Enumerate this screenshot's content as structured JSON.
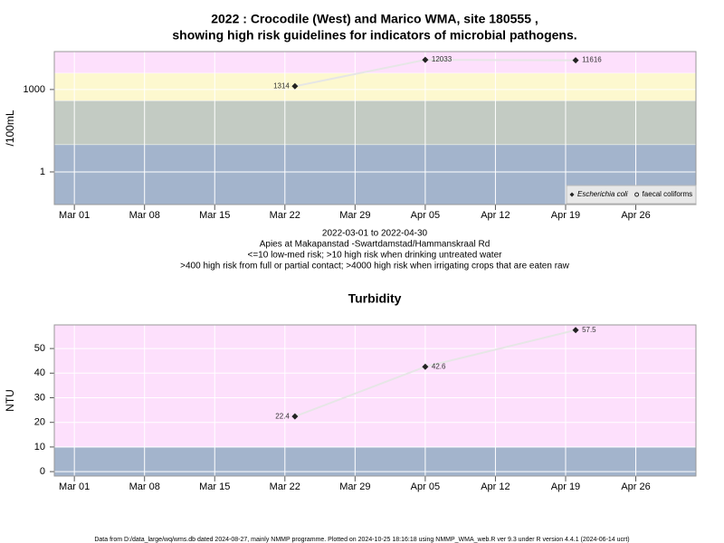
{
  "chart_data": [
    {
      "type": "line",
      "title": [
        "2022 : Crocodile (West) and Marico WMA, site 180555 ,",
        "showing high risk guidelines for indicators of microbial pathogens."
      ],
      "ylabel": "/100mL",
      "notes": [
        "2022-03-01 to 2022-04-30",
        "Apies at Makapanstad -Swartdamstad/Hammanskraal Rd",
        "<=10 low-med risk; >10 high risk when drinking untreated water",
        ">400 high risk from full or partial contact; >4000 high risk when irrigating crops that are eaten raw"
      ],
      "x": [
        "2022-03-23",
        "2022-04-05",
        "2022-04-20"
      ],
      "series": [
        {
          "name": "Escherichia coli",
          "color": "#222222",
          "marker": "diamond",
          "values": [
            1314,
            12033,
            11616
          ]
        },
        {
          "name": "faecal coliforms",
          "color": "#222222",
          "marker": "circle",
          "values": [
            null,
            null,
            null
          ]
        }
      ],
      "log_y": true,
      "ylim": [
        0.065,
        24000
      ],
      "yticks": [
        1,
        1000
      ],
      "xlim": [
        "2022-02-27",
        "2022-05-02"
      ],
      "xticks": [
        {
          "value": "2022-03-01",
          "label": "Mar 01"
        },
        {
          "value": "2022-03-08",
          "label": "Mar 08"
        },
        {
          "value": "2022-03-15",
          "label": "Mar 15"
        },
        {
          "value": "2022-03-22",
          "label": "Mar 22"
        },
        {
          "value": "2022-03-29",
          "label": "Mar 29"
        },
        {
          "value": "2022-04-05",
          "label": "Apr 05"
        },
        {
          "value": "2022-04-12",
          "label": "Apr 12"
        },
        {
          "value": "2022-04-19",
          "label": "Apr 19"
        },
        {
          "value": "2022-04-26",
          "label": "Apr 26"
        }
      ],
      "thresholds": [
        10,
        400,
        4000
      ],
      "band_colors": [
        "#a3b4cc",
        "#c3cbc3",
        "#fdf8cf",
        "#fde0fc"
      ],
      "line_color": "#e6e6e6",
      "grid": true,
      "legend": "bottom-right"
    },
    {
      "type": "line",
      "title": "Turbidity",
      "ylabel": "NTU",
      "x": [
        "2022-03-23",
        "2022-04-05",
        "2022-04-20"
      ],
      "values": [
        22.4,
        42.6,
        57.5
      ],
      "color": "#222222",
      "marker": "diamond",
      "log_y": false,
      "ylim": [
        -1.8,
        59.6
      ],
      "yticks": [
        0,
        10,
        20,
        30,
        40,
        50
      ],
      "xlim": [
        "2022-02-27",
        "2022-05-02"
      ],
      "xticks": [
        {
          "value": "2022-03-01",
          "label": "Mar 01"
        },
        {
          "value": "2022-03-08",
          "label": "Mar 08"
        },
        {
          "value": "2022-03-15",
          "label": "Mar 15"
        },
        {
          "value": "2022-03-22",
          "label": "Mar 22"
        },
        {
          "value": "2022-03-29",
          "label": "Mar 29"
        },
        {
          "value": "2022-04-05",
          "label": "Apr 05"
        },
        {
          "value": "2022-04-12",
          "label": "Apr 12"
        },
        {
          "value": "2022-04-19",
          "label": "Apr 19"
        },
        {
          "value": "2022-04-26",
          "label": "Apr 26"
        }
      ],
      "thresholds": [
        10
      ],
      "band_colors": [
        "#a3b4cc",
        "#fde0fc"
      ],
      "line_color": "#e6e6e6",
      "grid": true
    }
  ],
  "footer": "Data from D:/data_large/wq/wms.db dated 2024-08-27, mainly NMMP programme. Plotted on 2024-10-25 18:16:18 using NMMP_WMA_web.R ver 9.3 under R version 4.4.1 (2024-06-14 ucrt)"
}
